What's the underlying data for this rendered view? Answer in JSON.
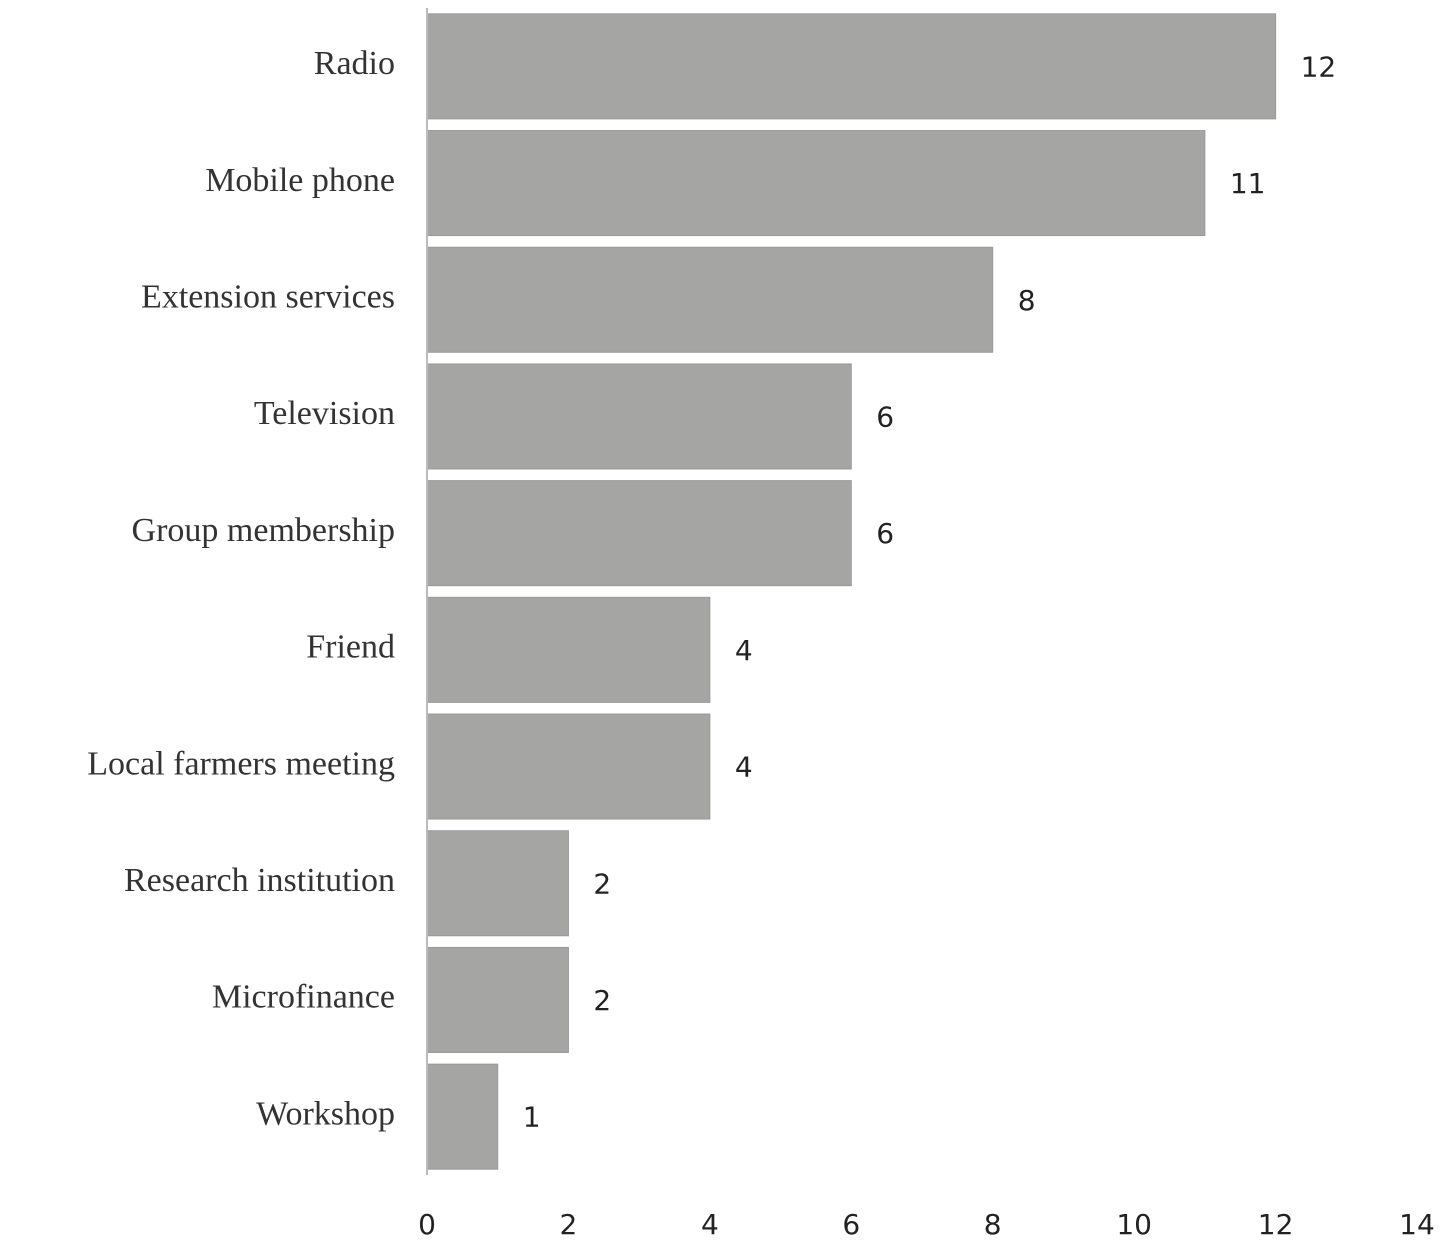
{
  "chart_data": {
    "type": "bar",
    "orientation": "horizontal",
    "categories": [
      "Radio",
      "Mobile phone",
      "Extension services",
      "Television",
      "Group membership",
      "Friend",
      "Local farmers meeting",
      "Research institution",
      "Microfinance",
      "Workshop"
    ],
    "values": [
      12,
      11,
      8,
      6,
      6,
      4,
      4,
      2,
      2,
      1
    ],
    "color": "#a5a6a4",
    "xlim": [
      0,
      14
    ],
    "xticks": [
      0,
      2,
      4,
      6,
      8,
      10,
      12,
      14
    ],
    "grid": false
  }
}
